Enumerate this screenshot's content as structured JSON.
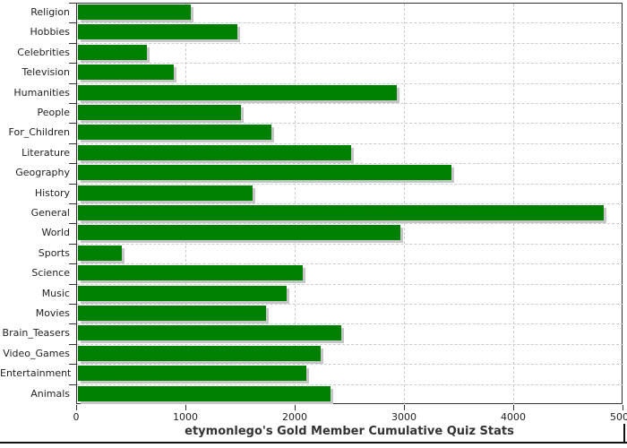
{
  "chart_data": {
    "type": "bar",
    "orientation": "horizontal",
    "title": "etymonlego's Gold Member Cumulative Quiz Stats",
    "categories": [
      "Religion",
      "Hobbies",
      "Celebrities",
      "Television",
      "Humanities",
      "People",
      "For_Children",
      "Literature",
      "Geography",
      "History",
      "General",
      "World",
      "Sports",
      "Science",
      "Music",
      "Movies",
      "Brain_Teasers",
      "Video_Games",
      "Entertainment",
      "Animals"
    ],
    "values": [
      1030,
      1460,
      630,
      880,
      2920,
      1490,
      1770,
      2500,
      3420,
      1600,
      4810,
      2950,
      400,
      2060,
      1910,
      1720,
      2410,
      2220,
      2090,
      2310
    ],
    "xlabel": "",
    "ylabel": "",
    "xlim": [
      0,
      5000
    ],
    "xticks": [
      0,
      1000,
      2000,
      3000,
      4000,
      5000
    ],
    "xtick_labels": [
      "0",
      "1000",
      "2000",
      "3000",
      "4000",
      "5000"
    ],
    "grid": "dashed, vertical at x ticks and horizontal at category boundaries",
    "legend": "none",
    "colors": {
      "bar": "#008000",
      "bar_shadow": "#c6c6c6",
      "grid": "#c9cdd1",
      "frame": "#333333",
      "text": "#222222",
      "title": "#333333",
      "rule": "#111111"
    }
  }
}
